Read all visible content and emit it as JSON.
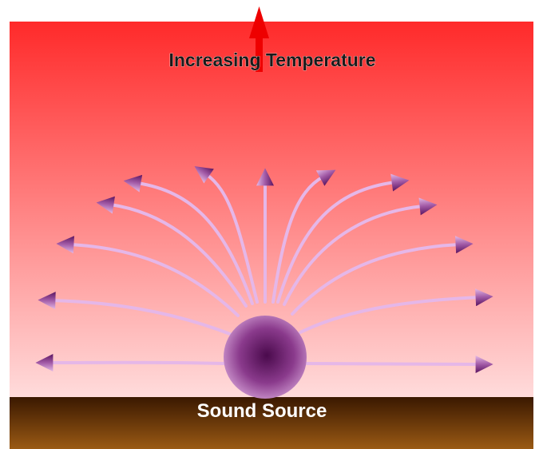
{
  "diagram": {
    "top_label": "Increasing Temperature",
    "source_label": "Sound Source",
    "colors": {
      "air_top": "#ff2a2a",
      "air_bottom": "#ffd9d9",
      "ground_top": "#3a1800",
      "ground_bottom": "#9a5a14",
      "ray": "#e5b7e8",
      "arrowhead_dark": "#6a1f6e",
      "arrowhead_light": "#d9a8dc",
      "source_center": "#4a0a4c",
      "source_edge": "#c38ac4",
      "temperature_arrow": "#ee0000"
    }
  }
}
